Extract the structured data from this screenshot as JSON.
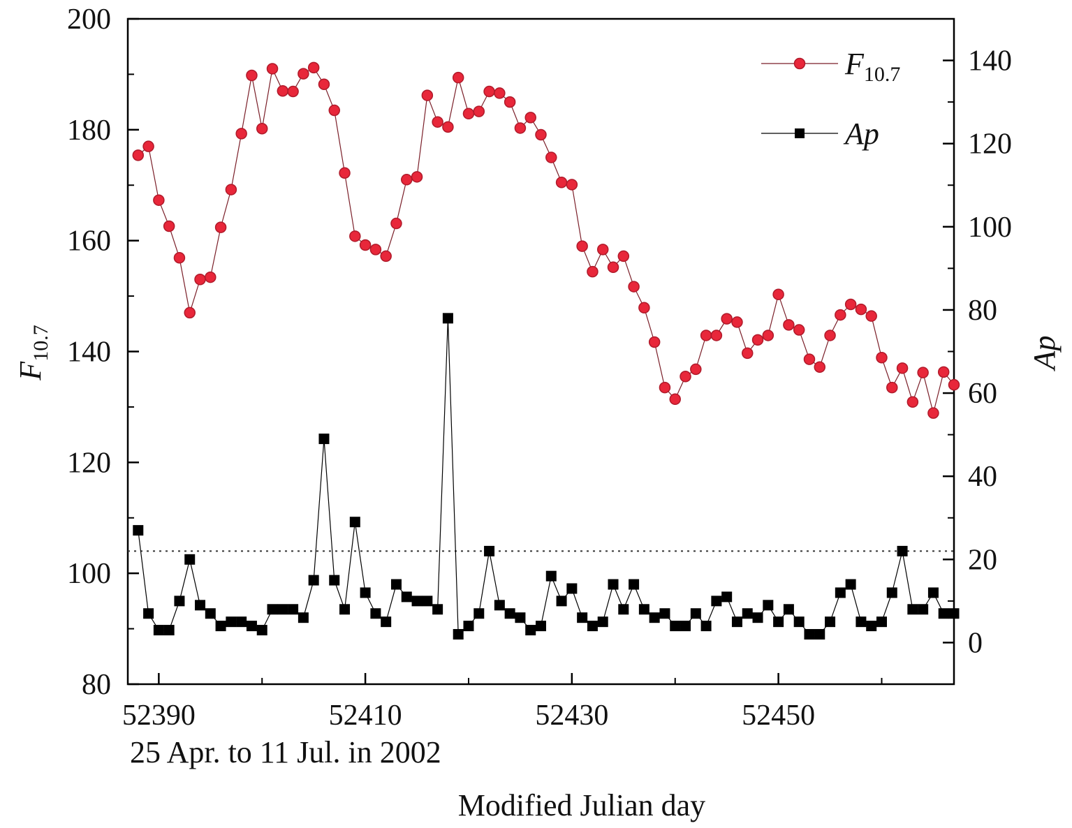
{
  "chart_data": {
    "type": "line",
    "xlabel": "Modified Julian day",
    "xlabel_note": "25 Apr. to 11 Jul. in 2002",
    "ylabel_left": {
      "main": "F",
      "sub": "10.7"
    },
    "ylabel_right": "Ap",
    "xlim": [
      52387,
      52467
    ],
    "x_ticks": [
      52390,
      52410,
      52430,
      52450
    ],
    "ylim_left": [
      80,
      200
    ],
    "y_ticks_left": [
      80,
      100,
      120,
      140,
      160,
      180,
      200
    ],
    "ylim_right": [
      -10,
      150
    ],
    "y_ticks_right": [
      0,
      20,
      40,
      60,
      80,
      100,
      120,
      140
    ],
    "reference_line": {
      "axis": "right",
      "value": 22,
      "style": "dotted"
    },
    "legend": {
      "position": "top-right",
      "entries": [
        {
          "series": 0,
          "main": "F",
          "sub": "10.7"
        },
        {
          "series": 1,
          "main": "Ap",
          "sub": ""
        }
      ]
    },
    "x": [
      52388,
      52389,
      52390,
      52391,
      52392,
      52393,
      52394,
      52395,
      52396,
      52397,
      52398,
      52399,
      52400,
      52401,
      52402,
      52403,
      52404,
      52405,
      52406,
      52407,
      52408,
      52409,
      52410,
      52411,
      52412,
      52413,
      52414,
      52415,
      52416,
      52417,
      52418,
      52419,
      52420,
      52421,
      52422,
      52423,
      52424,
      52425,
      52426,
      52427,
      52428,
      52429,
      52430,
      52431,
      52432,
      52433,
      52434,
      52435,
      52436,
      52437,
      52438,
      52439,
      52440,
      52441,
      52442,
      52443,
      52444,
      52445,
      52446,
      52447,
      52448,
      52449,
      52450,
      52451,
      52452,
      52453,
      52454,
      52455,
      52456,
      52457,
      52458,
      52459,
      52460,
      52461,
      52462,
      52463,
      52464,
      52465,
      52466,
      52467
    ],
    "series": [
      {
        "axis": "left",
        "marker": "circle",
        "color": "#e8273a",
        "edge": "#b01a2a",
        "values": [
          175.4,
          177,
          167.3,
          162.6,
          156.9,
          147,
          153,
          153.4,
          162.4,
          169.2,
          179.3,
          189.8,
          180.2,
          191,
          187,
          186.9,
          190.1,
          191.2,
          188.2,
          183.5,
          172.2,
          160.8,
          159.2,
          158.4,
          157.2,
          163.1,
          171,
          171.5,
          186.2,
          181.4,
          180.5,
          189.4,
          182.9,
          183.3,
          186.9,
          186.6,
          185,
          180.3,
          182.2,
          179.1,
          175,
          170.5,
          170.1,
          159,
          154.4,
          158.4,
          155.2,
          157.2,
          151.7,
          147.9,
          141.7,
          133.5,
          131.4,
          135.5,
          136.8,
          142.9,
          142.9,
          145.9,
          145.3,
          139.7,
          142.1,
          142.9,
          150.3,
          144.8,
          143.9,
          138.6,
          137.2,
          142.9,
          146.6,
          148.5,
          147.6,
          146.4,
          138.9,
          133.5,
          137,
          130.9,
          136.2,
          128.9,
          136.3,
          134
        ]
      },
      {
        "axis": "right",
        "marker": "square",
        "color": "#000000",
        "edge": "#000000",
        "values": [
          27,
          7,
          3,
          3,
          10,
          20,
          9,
          7,
          4,
          5,
          5,
          4,
          3,
          8,
          8,
          8,
          6,
          15,
          49,
          15,
          8,
          29,
          12,
          7,
          5,
          14,
          11,
          10,
          10,
          8,
          78,
          2,
          4,
          7,
          22,
          9,
          7,
          6,
          3,
          4,
          16,
          10,
          13,
          6,
          4,
          5,
          14,
          8,
          14,
          8,
          6,
          7,
          4,
          4,
          7,
          4,
          10,
          11,
          5,
          7,
          6,
          9,
          5,
          8,
          5,
          2,
          2,
          5,
          12,
          14,
          5,
          4,
          5,
          12,
          22,
          8,
          8,
          12,
          7,
          7
        ]
      }
    ]
  }
}
